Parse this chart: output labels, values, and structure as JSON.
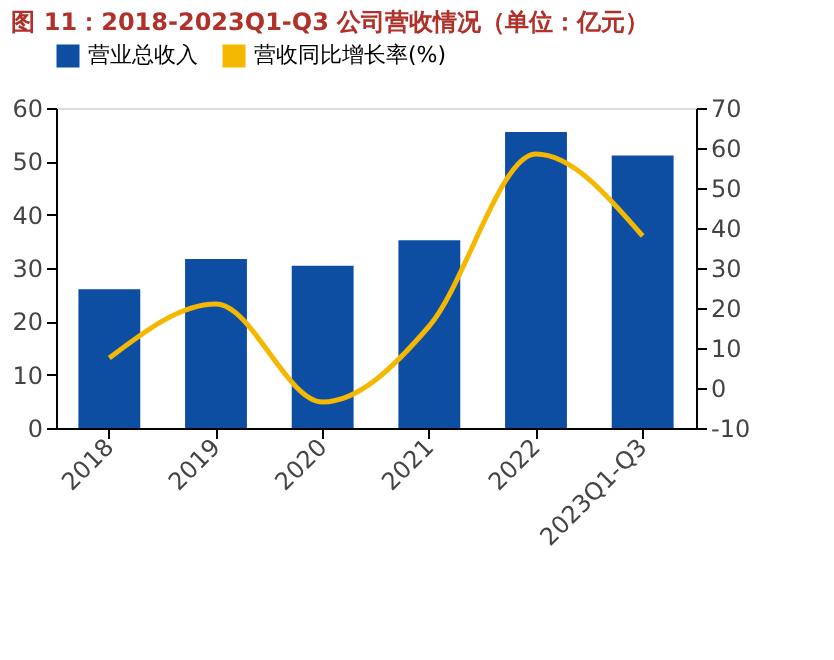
{
  "chart_data": {
    "type": "bar",
    "title": "图 11：2018-2023Q1-Q3 公司营收情况（单位：亿元）",
    "categories": [
      "2018",
      "2019",
      "2020",
      "2021",
      "2022",
      "2023Q1-Q3"
    ],
    "series": [
      {
        "name": "营业总收入",
        "color": "#0d4ea3",
        "values": [
          26,
          31.7,
          30.4,
          35.2,
          55.5,
          51.1
        ]
      },
      {
        "name": "营收同比增长率(%)",
        "color": "#f5b800",
        "type": "line",
        "axis": "y2",
        "values": [
          7.5,
          21,
          -3.5,
          15.5,
          58.5,
          38
        ]
      }
    ],
    "ylim": [
      0,
      60
    ],
    "yticks": [
      0,
      10,
      20,
      30,
      40,
      50,
      60
    ],
    "y2lim": [
      -10,
      70
    ],
    "y2ticks": [
      -10,
      0,
      10,
      20,
      30,
      40,
      50,
      60,
      70
    ],
    "legend": "top",
    "grid": false
  }
}
